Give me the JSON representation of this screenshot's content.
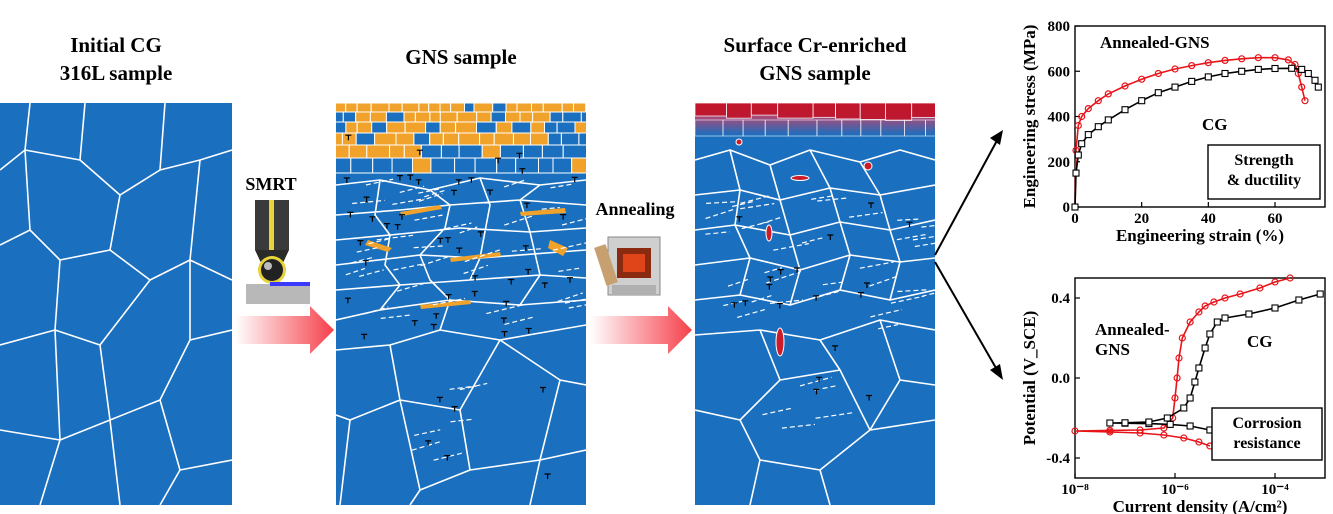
{
  "panels": {
    "initial": {
      "line1": "Initial CG",
      "line2": "316L sample"
    },
    "gns": {
      "title": "GNS sample"
    },
    "enriched": {
      "line1": "Surface Cr-enriched",
      "line2": "GNS sample"
    }
  },
  "steps": {
    "smrt": "SMRT",
    "annealing": "Annealing"
  },
  "colors": {
    "grain": "#1a6fbf",
    "nano_grain": "#f0a22a",
    "cr_rich": "#cc1c2a",
    "boundary": "#ffffff",
    "annealed_series": "#e8141a",
    "cg_series": "#000000"
  },
  "chart_data": [
    {
      "type": "line",
      "title": "",
      "xlabel": "Engineering strain (%)",
      "ylabel": "Engineering stress (MPa)",
      "xlim": [
        0,
        75
      ],
      "ylim": [
        0,
        800
      ],
      "xticks": [
        "0",
        "20",
        "40",
        "60"
      ],
      "yticks": [
        "0",
        "200",
        "400",
        "600",
        "800"
      ],
      "annotation": {
        "line1": "Strength",
        "line2": "& ductility"
      },
      "series": [
        {
          "name": "Annealed-GNS",
          "color": "#e8141a",
          "x": [
            0,
            0.3,
            1,
            2,
            4,
            7,
            10,
            15,
            20,
            25,
            30,
            35,
            40,
            45,
            50,
            55,
            60,
            64,
            66,
            67,
            68,
            69
          ],
          "y": [
            0,
            250,
            360,
            400,
            435,
            470,
            500,
            535,
            565,
            590,
            610,
            625,
            638,
            648,
            655,
            660,
            660,
            650,
            630,
            590,
            530,
            470
          ]
        },
        {
          "name": "CG",
          "color": "#000000",
          "x": [
            0,
            0.3,
            1,
            2,
            4,
            7,
            10,
            15,
            20,
            25,
            30,
            35,
            40,
            45,
            50,
            55,
            60,
            65,
            68,
            70,
            72,
            73
          ],
          "y": [
            0,
            150,
            230,
            280,
            320,
            355,
            385,
            430,
            470,
            505,
            530,
            555,
            575,
            590,
            600,
            608,
            612,
            613,
            608,
            590,
            560,
            530
          ]
        }
      ]
    },
    {
      "type": "line",
      "title": "",
      "xlabel": "Current density (A/cm²)",
      "ylabel": "Potential (V_SCE)",
      "xscale": "log",
      "xlim": [
        1e-08,
        0.001
      ],
      "ylim": [
        -0.5,
        0.5
      ],
      "xticks": [
        "10⁻⁸",
        "10⁻⁶",
        "10⁻⁴"
      ],
      "yticks": [
        "-0.4",
        "0.0",
        "0.4"
      ],
      "annotation": {
        "line1": "Corrosion",
        "line2": "resistance"
      },
      "series": [
        {
          "name": "Annealed-GNS",
          "color": "#e8141a",
          "x": [
            5e-06,
            3e-06,
            1.5e-06,
            6e-07,
            2e-07,
            5e-08,
            1e-08,
            5e-08,
            2e-07,
            6e-07,
            9e-07,
            1e-06,
            1.1e-06,
            1.2e-06,
            1.4e-06,
            2e-06,
            3e-06,
            4e-06,
            6e-06,
            1e-05,
            2e-05,
            5e-05,
            0.0001,
            0.0002
          ],
          "y": [
            -0.34,
            -0.32,
            -0.3,
            -0.285,
            -0.275,
            -0.27,
            -0.265,
            -0.262,
            -0.26,
            -0.25,
            -0.2,
            -0.1,
            0.0,
            0.1,
            0.2,
            0.28,
            0.33,
            0.36,
            0.38,
            0.4,
            0.42,
            0.45,
            0.48,
            0.5
          ]
        },
        {
          "name": "CG",
          "color": "#000000",
          "x": [
            3e-05,
            2e-05,
            1e-05,
            5e-06,
            2e-06,
            8e-07,
            3e-07,
            1e-07,
            5e-08,
            1e-07,
            3e-07,
            7e-07,
            1.5e-06,
            2e-06,
            2.5e-06,
            3e-06,
            4e-06,
            5e-06,
            7e-06,
            1e-05,
            3e-05,
            0.0001,
            0.0003,
            0.0008
          ],
          "y": [
            -0.33,
            -0.31,
            -0.28,
            -0.26,
            -0.24,
            -0.232,
            -0.228,
            -0.226,
            -0.225,
            -0.224,
            -0.22,
            -0.2,
            -0.15,
            -0.1,
            -0.02,
            0.05,
            0.15,
            0.22,
            0.28,
            0.3,
            0.32,
            0.35,
            0.39,
            0.42
          ]
        }
      ]
    }
  ]
}
